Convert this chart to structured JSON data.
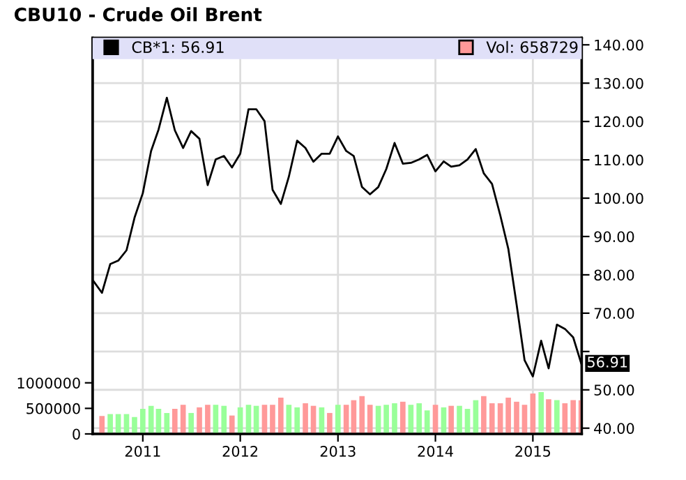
{
  "chart_data": {
    "type": "line",
    "title": "CBU10 - Crude Oil Brent",
    "xlim": [
      "2010-06-27",
      "2015-07-03"
    ],
    "xticks": [
      {
        "value": "2011-01-01",
        "label": "2011"
      },
      {
        "value": "2012-01-01",
        "label": "2012"
      },
      {
        "value": "2013-01-01",
        "label": "2013"
      },
      {
        "value": "2014-01-01",
        "label": "2014"
      },
      {
        "value": "2015-01-01",
        "label": "2015"
      }
    ],
    "ylim": [
      0,
      7750000
    ],
    "yticks": [
      0,
      500000,
      1000000
    ],
    "y2lim": [
      38.5,
      141.8
    ],
    "y2ticks": [
      {
        "value": 40,
        "label": "40.00"
      },
      {
        "value": 50,
        "label": "50.00"
      },
      {
        "value": 60,
        "label": null
      },
      {
        "value": 70,
        "label": "70.00"
      },
      {
        "value": 80,
        "label": "80.00"
      },
      {
        "value": 90,
        "label": "90.00"
      },
      {
        "value": 100,
        "label": "100.00"
      },
      {
        "value": 110,
        "label": "110.00"
      },
      {
        "value": 120,
        "label": "120.00"
      },
      {
        "value": 130,
        "label": "130.00"
      },
      {
        "value": 140,
        "label": "140.00"
      }
    ],
    "series": [
      {
        "name": "CB*1: 56.91",
        "axis": "y2",
        "color": "#000000",
        "x": [
          "2010-07",
          "2010-08",
          "2010-09",
          "2010-10",
          "2010-11",
          "2010-12",
          "2011-01",
          "2011-02",
          "2011-03",
          "2011-04",
          "2011-05",
          "2011-06",
          "2011-07",
          "2011-08",
          "2011-09",
          "2011-10",
          "2011-11",
          "2011-12",
          "2012-01",
          "2012-02",
          "2012-03",
          "2012-04",
          "2012-05",
          "2012-06",
          "2012-07",
          "2012-08",
          "2012-09",
          "2012-10",
          "2012-11",
          "2012-12",
          "2013-01",
          "2013-02",
          "2013-03",
          "2013-04",
          "2013-05",
          "2013-06",
          "2013-07",
          "2013-08",
          "2013-09",
          "2013-10",
          "2013-11",
          "2013-12",
          "2014-01",
          "2014-02",
          "2014-03",
          "2014-04",
          "2014-05",
          "2014-06",
          "2014-07",
          "2014-08",
          "2014-09",
          "2014-10",
          "2014-11",
          "2014-12",
          "2015-01",
          "2015-02",
          "2015-03",
          "2015-04",
          "2015-05",
          "2015-06",
          "2015-07"
        ],
        "values": [
          78.3,
          75.3,
          82.8,
          83.7,
          86.4,
          94.9,
          101.3,
          112.3,
          117.9,
          126.2,
          117.7,
          113.1,
          117.5,
          115.5,
          103.4,
          110.1,
          111.0,
          108.0,
          111.6,
          123.2,
          123.2,
          120.1,
          102.2,
          98.5,
          105.6,
          115.0,
          113.1,
          109.5,
          111.6,
          111.6,
          116.1,
          112.3,
          111.0,
          102.9,
          101.0,
          102.9,
          107.6,
          114.4,
          109.0,
          109.2,
          110.1,
          111.3,
          107.0,
          109.6,
          108.2,
          108.6,
          110.1,
          112.8,
          106.5,
          103.7,
          95.5,
          86.8,
          72.3,
          57.7,
          53.5,
          62.8,
          55.6,
          67.0,
          65.9,
          63.7,
          56.91
        ]
      },
      {
        "name": "Vol: 658729",
        "type": "bar",
        "axis": "y",
        "color": "#ff9999",
        "x": [
          "2010-08",
          "2010-09",
          "2010-10",
          "2010-11",
          "2010-12",
          "2011-01",
          "2011-02",
          "2011-03",
          "2011-04",
          "2011-05",
          "2011-06",
          "2011-07",
          "2011-08",
          "2011-09",
          "2011-10",
          "2011-11",
          "2011-12",
          "2012-01",
          "2012-02",
          "2012-03",
          "2012-04",
          "2012-05",
          "2012-06",
          "2012-07",
          "2012-08",
          "2012-09",
          "2012-10",
          "2012-11",
          "2012-12",
          "2013-01",
          "2013-02",
          "2013-03",
          "2013-04",
          "2013-05",
          "2013-06",
          "2013-07",
          "2013-08",
          "2013-09",
          "2013-10",
          "2013-11",
          "2013-12",
          "2014-01",
          "2014-02",
          "2014-03",
          "2014-04",
          "2014-05",
          "2014-06",
          "2014-07",
          "2014-08",
          "2014-09",
          "2014-10",
          "2014-11",
          "2014-12",
          "2015-01",
          "2015-02",
          "2015-03",
          "2015-04",
          "2015-05",
          "2015-06",
          "2015-07"
        ],
        "values": [
          350000,
          390000,
          390000,
          390000,
          330000,
          490000,
          550000,
          490000,
          410000,
          490000,
          570000,
          410000,
          520000,
          570000,
          570000,
          550000,
          360000,
          520000,
          570000,
          550000,
          570000,
          570000,
          710000,
          570000,
          520000,
          600000,
          550000,
          520000,
          410000,
          570000,
          570000,
          660000,
          740000,
          570000,
          550000,
          570000,
          600000,
          630000,
          570000,
          600000,
          460000,
          570000,
          520000,
          550000,
          550000,
          490000,
          660000,
          740000,
          600000,
          600000,
          710000,
          630000,
          570000,
          790000,
          820000,
          680000,
          660000,
          600000,
          660000,
          658729
        ],
        "colors": [
          "#ff9999",
          "#99ff99",
          "#99ff99",
          "#99ff99",
          "#99ff99",
          "#99ff99",
          "#99ff99",
          "#99ff99",
          "#99ff99",
          "#ff9999",
          "#ff9999",
          "#99ff99",
          "#ff9999",
          "#ff9999",
          "#99ff99",
          "#99ff99",
          "#ff9999",
          "#99ff99",
          "#99ff99",
          "#99ff99",
          "#ff9999",
          "#ff9999",
          "#ff9999",
          "#99ff99",
          "#99ff99",
          "#ff9999",
          "#ff9999",
          "#99ff99",
          "#ff9999",
          "#99ff99",
          "#ff9999",
          "#ff9999",
          "#ff9999",
          "#ff9999",
          "#99ff99",
          "#99ff99",
          "#99ff99",
          "#ff9999",
          "#99ff99",
          "#99ff99",
          "#99ff99",
          "#ff9999",
          "#99ff99",
          "#ff9999",
          "#99ff99",
          "#99ff99",
          "#99ff99",
          "#ff9999",
          "#ff9999",
          "#ff9999",
          "#ff9999",
          "#ff9999",
          "#ff9999",
          "#ff9999",
          "#99ff99",
          "#ff9999",
          "#99ff99",
          "#ff9999",
          "#ff9999",
          "#ff9999"
        ]
      }
    ],
    "annotations": [
      "56.91"
    ],
    "grid": true,
    "legend": "top left"
  }
}
